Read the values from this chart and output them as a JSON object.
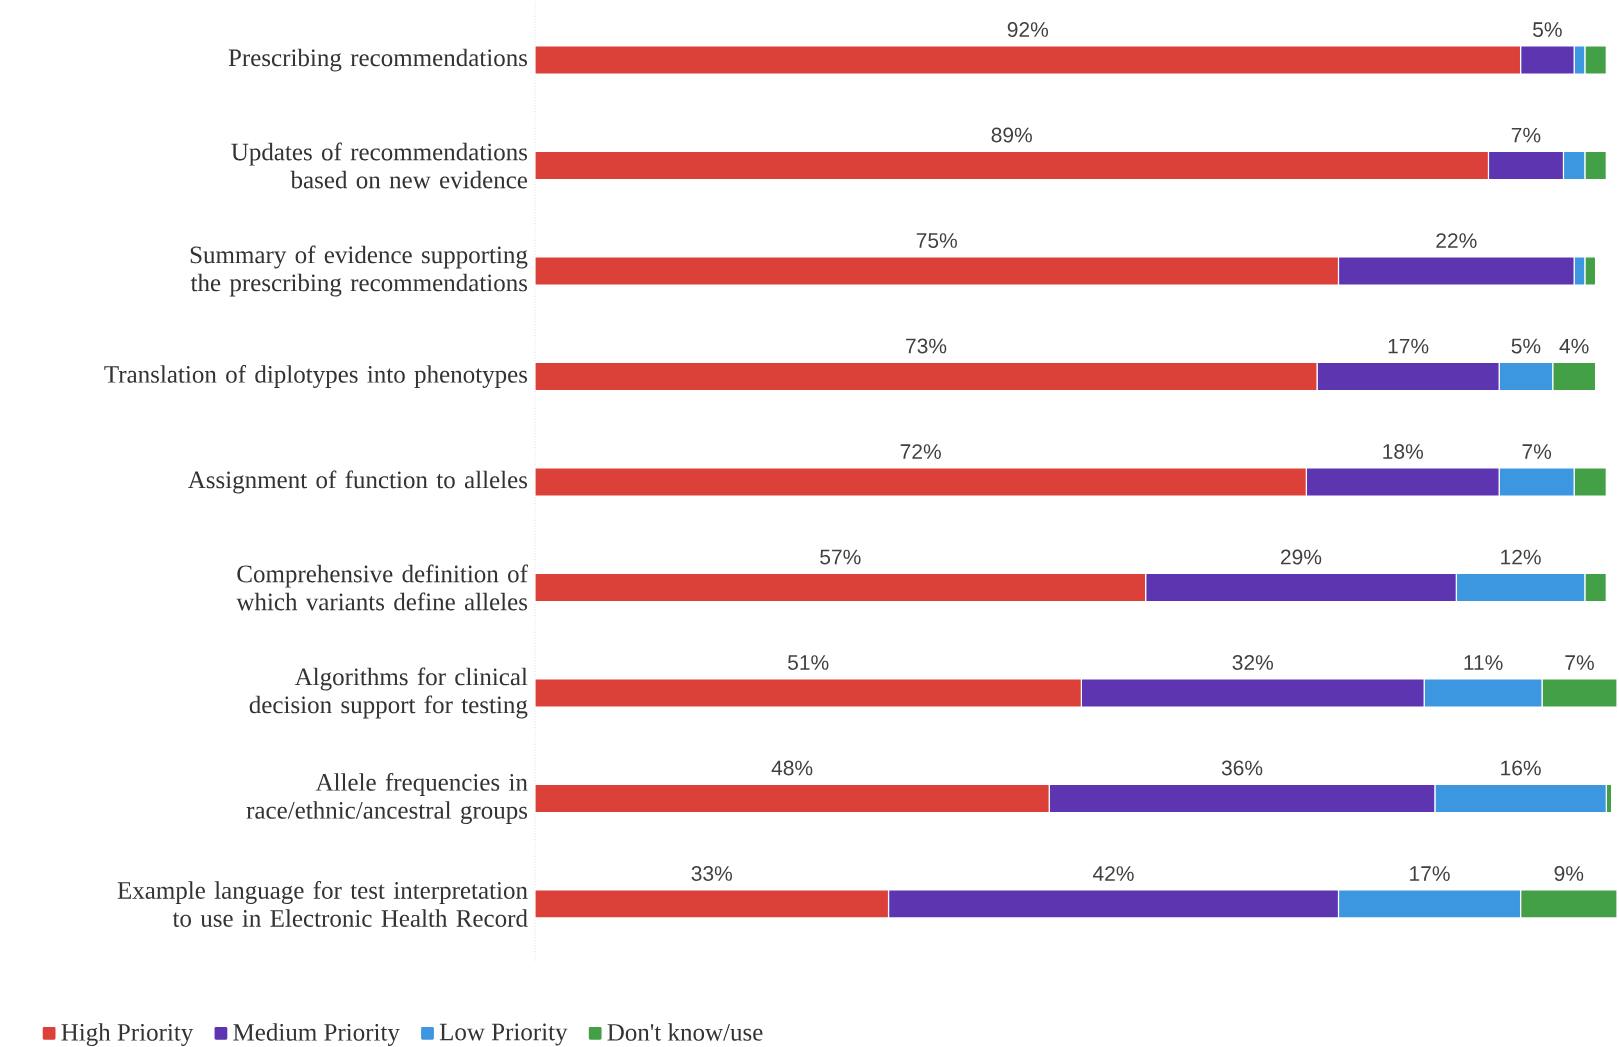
{
  "chart_data": {
    "type": "bar",
    "orientation": "horizontal",
    "stacked": true,
    "legend": "bottom left",
    "tick_labels": "y",
    "xlim": [
      0,
      101
    ],
    "categories": [
      "Prescribing recommendations",
      "Updates of recommendations based on new evidence",
      "Summary of evidence supporting the prescribing recommendations",
      "Translation of diplotypes into phenotypes",
      "Assignment of function to alleles",
      "Comprehensive definition of which variants define alleles",
      "Algorithms for clinical decision support for testing",
      "Allele frequencies in race/ethnic/ancestral groups",
      "Example language for test interpretation to use in Electronic Health Record"
    ],
    "series": [
      {
        "name": "High Priority",
        "color": "#db4039",
        "values": [
          92,
          89,
          75,
          73,
          72,
          57,
          51,
          48,
          33
        ],
        "value_labels": [
          "92%",
          "89%",
          "75%",
          "73%",
          "72%",
          "57%",
          "51%",
          "48%",
          "33%"
        ]
      },
      {
        "name": "Medium Priority",
        "color": "#5e35b1",
        "values": [
          5,
          7,
          22,
          17,
          18,
          29,
          32,
          36,
          42
        ],
        "value_labels": [
          "5%",
          "7%",
          "22%",
          "17%",
          "18%",
          "29%",
          "32%",
          "36%",
          "42%"
        ]
      },
      {
        "name": "Low Priority",
        "color": "#3d97e0",
        "values": [
          1,
          2,
          1,
          5,
          7,
          12,
          11,
          16,
          17
        ],
        "value_labels": [
          null,
          null,
          null,
          "5%",
          "7%",
          "12%",
          "11%",
          "16%",
          "17%"
        ]
      },
      {
        "name": "Don't know/use",
        "color": "#43a047",
        "values": [
          2,
          2,
          1,
          4,
          3,
          2,
          7,
          0.5,
          9
        ],
        "value_labels": [
          null,
          null,
          null,
          "4%",
          null,
          null,
          "7%",
          null,
          "9%"
        ]
      }
    ]
  }
}
